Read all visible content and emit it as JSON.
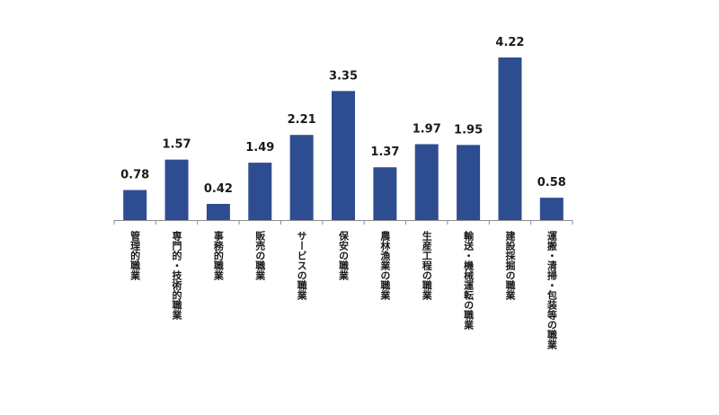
{
  "chart_data": {
    "type": "bar",
    "categories": [
      "管理的職業",
      "専門的・技術的職業",
      "事務的職業",
      "販売の職業",
      "サービスの職業",
      "保安の職業",
      "農林漁業の職業",
      "生産工程の職業",
      "輸送・機械運転の職業",
      "建設採掘の職業",
      "運搬・清掃・包装等の職業"
    ],
    "values": [
      0.78,
      1.57,
      0.42,
      1.49,
      2.21,
      3.35,
      1.37,
      1.97,
      1.95,
      4.22,
      0.58
    ],
    "value_labels": [
      "0.78",
      "1.57",
      "0.42",
      "1.49",
      "2.21",
      "3.35",
      "1.37",
      "1.97",
      "1.95",
      "4.22",
      "0.58"
    ],
    "title": "",
    "xlabel": "",
    "ylabel": "",
    "ylim": [
      0,
      4.22
    ],
    "grid": false,
    "legend": "none",
    "bar_color": "#2E4D91"
  }
}
